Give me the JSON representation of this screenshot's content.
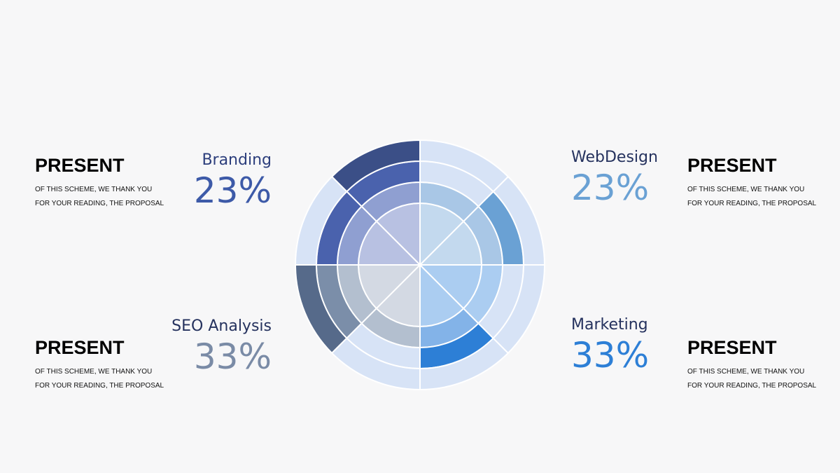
{
  "blocks": [
    {
      "label": "Branding",
      "value": "23%",
      "heading": "PRESENT",
      "text": [
        "OF THIS SCHEME, WE THANK YOU",
        "FOR YOUR READING, THE PROPOSAL"
      ]
    },
    {
      "label": "WebDesign",
      "value": "23%",
      "heading": "PRESENT",
      "text": [
        "OF THIS SCHEME, WE THANK YOU",
        "FOR YOUR READING, THE PROPOSAL"
      ]
    },
    {
      "label": "SEO Analysis",
      "value": "33%",
      "heading": "PRESENT",
      "text": [
        "OF THIS SCHEME, WE THANK YOU",
        "FOR YOUR READING, THE PROPOSAL"
      ]
    },
    {
      "label": "Marketing",
      "value": "33%",
      "heading": "PRESENT",
      "text": [
        "OF THIS SCHEME, WE THANK YOU",
        "FOR YOUR READING, THE PROPOSAL"
      ]
    }
  ]
}
